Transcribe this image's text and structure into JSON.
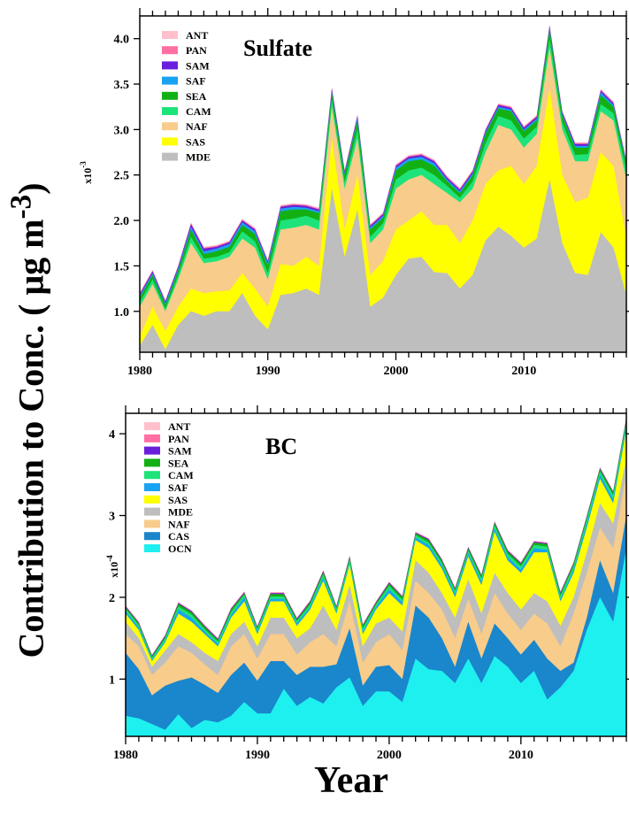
{
  "ylabel": "Contribution to Conc. ( μg m-3)",
  "xlabel": "Year",
  "chart_data": [
    {
      "type": "area",
      "stacked": true,
      "title": "Sulfate",
      "scale_label": "x10-3",
      "xlim": [
        1980,
        2018
      ],
      "ylim": [
        0.55,
        4.25
      ],
      "x_ticks": [
        1980,
        1990,
        2000,
        2010
      ],
      "y_ticks": [
        1.0,
        1.5,
        2.0,
        2.5,
        3.0,
        3.5,
        4.0
      ],
      "y_tick_labels": [
        "1.0",
        "1.5",
        "2.0",
        "2.5",
        "3.0",
        "3.5",
        "4.0"
      ],
      "legend": [
        "ANT",
        "PAN",
        "SAM",
        "SAF",
        "SEA",
        "CAM",
        "NAF",
        "SAS",
        "MDE"
      ],
      "legend_position": "top-left",
      "x": [
        1980,
        1981,
        1982,
        1983,
        1984,
        1985,
        1986,
        1987,
        1988,
        1989,
        1990,
        1991,
        1992,
        1993,
        1994,
        1995,
        1996,
        1997,
        1998,
        1999,
        2000,
        2001,
        2002,
        2003,
        2004,
        2005,
        2006,
        2007,
        2008,
        2009,
        2010,
        2011,
        2012,
        2013,
        2014,
        2015,
        2016,
        2017,
        2018
      ],
      "stack_order": [
        "MDE",
        "SAS",
        "NAF",
        "CAM",
        "SEA",
        "SAF",
        "SAM",
        "PAN",
        "ANT"
      ],
      "cumulative": true,
      "series": [
        {
          "name": "MDE",
          "color": "#bebebe",
          "values": [
            0.62,
            0.85,
            0.58,
            0.85,
            1.0,
            0.95,
            1.0,
            1.0,
            1.2,
            0.95,
            0.8,
            1.18,
            1.2,
            1.25,
            1.18,
            2.35,
            1.6,
            2.12,
            1.05,
            1.15,
            1.4,
            1.58,
            1.6,
            1.43,
            1.42,
            1.25,
            1.4,
            1.78,
            1.93,
            1.83,
            1.7,
            1.8,
            2.45,
            1.75,
            1.42,
            1.4,
            1.87,
            1.7,
            1.18
          ]
        },
        {
          "name": "SAS",
          "color": "#ffff00",
          "values": [
            0.72,
            1.05,
            0.78,
            1.05,
            1.25,
            1.2,
            1.22,
            1.23,
            1.42,
            1.25,
            1.05,
            1.52,
            1.5,
            1.6,
            1.5,
            2.9,
            1.9,
            2.5,
            1.4,
            1.55,
            1.9,
            2.0,
            2.1,
            1.95,
            1.95,
            1.75,
            2.0,
            2.4,
            2.55,
            2.6,
            2.4,
            2.6,
            3.45,
            2.5,
            2.2,
            2.25,
            2.75,
            2.6,
            1.8
          ]
        },
        {
          "name": "NAF",
          "color": "#f8cc8a",
          "values": [
            1.05,
            1.3,
            1.0,
            1.35,
            1.75,
            1.53,
            1.55,
            1.6,
            1.8,
            1.7,
            1.35,
            1.9,
            1.92,
            1.95,
            1.9,
            3.25,
            2.35,
            2.9,
            1.75,
            1.9,
            2.35,
            2.45,
            2.5,
            2.4,
            2.3,
            2.2,
            2.35,
            2.75,
            3.05,
            3.0,
            2.8,
            2.95,
            3.9,
            3.0,
            2.65,
            2.65,
            3.2,
            3.1,
            2.45
          ]
        },
        {
          "name": "CAM",
          "color": "#1ee37a",
          "values": [
            1.1,
            1.35,
            1.03,
            1.4,
            1.82,
            1.58,
            1.6,
            1.65,
            1.88,
            1.77,
            1.42,
            2.0,
            2.02,
            2.05,
            2.0,
            3.33,
            2.42,
            3.0,
            1.82,
            1.97,
            2.45,
            2.55,
            2.58,
            2.5,
            2.38,
            2.25,
            2.43,
            2.85,
            3.15,
            3.1,
            2.9,
            3.03,
            4.0,
            3.08,
            2.72,
            2.73,
            3.28,
            3.18,
            2.55
          ]
        },
        {
          "name": "SEA",
          "color": "#13b013",
          "values": [
            1.15,
            1.4,
            1.07,
            1.45,
            1.9,
            1.63,
            1.66,
            1.71,
            1.95,
            1.85,
            1.5,
            2.1,
            2.12,
            2.12,
            2.08,
            3.4,
            2.5,
            3.1,
            1.9,
            2.03,
            2.55,
            2.65,
            2.67,
            2.6,
            2.43,
            2.3,
            2.5,
            2.95,
            3.23,
            3.2,
            2.98,
            3.1,
            4.1,
            3.15,
            2.8,
            2.8,
            3.38,
            3.25,
            2.62
          ]
        },
        {
          "name": "SAF",
          "color": "#1aa3f0",
          "values": [
            1.17,
            1.42,
            1.09,
            1.47,
            1.93,
            1.66,
            1.69,
            1.74,
            1.98,
            1.88,
            1.53,
            2.13,
            2.15,
            2.14,
            2.1,
            3.42,
            2.52,
            3.13,
            1.92,
            2.05,
            2.58,
            2.68,
            2.7,
            2.63,
            2.45,
            2.32,
            2.52,
            2.97,
            3.25,
            3.22,
            3.0,
            3.12,
            4.12,
            3.17,
            2.82,
            2.82,
            3.41,
            3.27,
            2.64
          ]
        },
        {
          "name": "SAM",
          "color": "#6a1fdc",
          "values": [
            1.19,
            1.44,
            1.11,
            1.49,
            1.96,
            1.69,
            1.71,
            1.76,
            2.0,
            1.9,
            1.55,
            2.15,
            2.17,
            2.16,
            2.12,
            3.45,
            2.54,
            3.15,
            1.94,
            2.07,
            2.6,
            2.7,
            2.72,
            2.65,
            2.47,
            2.34,
            2.54,
            2.99,
            3.27,
            3.24,
            3.02,
            3.14,
            4.14,
            3.19,
            2.84,
            2.84,
            3.43,
            3.29,
            2.65
          ]
        },
        {
          "name": "PAN",
          "color": "#ff6fa4",
          "values": [
            1.2,
            1.45,
            1.12,
            1.5,
            1.97,
            1.7,
            1.72,
            1.77,
            2.01,
            1.91,
            1.56,
            2.16,
            2.18,
            2.17,
            2.13,
            3.46,
            2.55,
            3.16,
            1.95,
            2.08,
            2.61,
            2.71,
            2.73,
            2.66,
            2.48,
            2.35,
            2.55,
            3.0,
            3.28,
            3.25,
            3.03,
            3.15,
            4.15,
            3.2,
            2.85,
            2.85,
            3.44,
            3.3,
            2.66
          ]
        },
        {
          "name": "ANT",
          "color": "#ffc0cb",
          "values": [
            1.21,
            1.46,
            1.12,
            1.51,
            1.98,
            1.71,
            1.73,
            1.78,
            2.02,
            1.92,
            1.57,
            2.17,
            2.19,
            2.18,
            2.14,
            3.47,
            2.56,
            3.17,
            1.96,
            2.09,
            2.62,
            2.72,
            2.74,
            2.67,
            2.49,
            2.36,
            2.56,
            3.01,
            3.29,
            3.26,
            3.04,
            3.16,
            4.16,
            3.21,
            2.86,
            2.86,
            3.45,
            3.31,
            2.67
          ]
        }
      ]
    },
    {
      "type": "area",
      "stacked": true,
      "title": "BC",
      "scale_label": "x10-4",
      "xlim": [
        1980,
        2018
      ],
      "ylim": [
        0.3,
        4.25
      ],
      "x_ticks": [
        1980,
        1990,
        2000,
        2010
      ],
      "y_ticks": [
        1,
        2,
        3,
        4
      ],
      "y_tick_labels": [
        "1",
        "2",
        "3",
        "4"
      ],
      "legend": [
        "ANT",
        "PAN",
        "SAM",
        "SEA",
        "CAM",
        "SAF",
        "SAS",
        "MDE",
        "NAF",
        "CAS",
        "OCN"
      ],
      "legend_position": "top-left",
      "x": [
        1980,
        1981,
        1982,
        1983,
        1984,
        1985,
        1986,
        1987,
        1988,
        1989,
        1990,
        1991,
        1992,
        1993,
        1994,
        1995,
        1996,
        1997,
        1998,
        1999,
        2000,
        2001,
        2002,
        2003,
        2004,
        2005,
        2006,
        2007,
        2008,
        2009,
        2010,
        2011,
        2012,
        2013,
        2014,
        2015,
        2016,
        2017,
        2018
      ],
      "stack_order": [
        "OCN",
        "CAS",
        "NAF",
        "MDE",
        "SAS",
        "SAF",
        "CAM",
        "SEA",
        "SAM",
        "PAN",
        "ANT"
      ],
      "cumulative": true,
      "series": [
        {
          "name": "OCN",
          "color": "#1ef0f0",
          "values": [
            0.55,
            0.52,
            0.45,
            0.38,
            0.57,
            0.4,
            0.5,
            0.47,
            0.55,
            0.72,
            0.58,
            0.58,
            0.88,
            0.67,
            0.78,
            0.7,
            0.9,
            1.02,
            0.67,
            0.85,
            0.85,
            0.72,
            1.25,
            1.12,
            1.1,
            0.95,
            1.25,
            0.95,
            1.28,
            1.15,
            0.95,
            1.1,
            0.75,
            0.9,
            1.1,
            1.6,
            2.0,
            1.7,
            2.6
          ]
        },
        {
          "name": "CAS",
          "color": "#1a86cc",
          "values": [
            1.32,
            1.12,
            0.8,
            0.92,
            0.98,
            1.02,
            0.93,
            0.83,
            1.05,
            1.2,
            0.98,
            1.22,
            1.22,
            1.05,
            1.15,
            1.15,
            1.18,
            1.62,
            0.92,
            1.15,
            1.17,
            1.0,
            1.9,
            1.75,
            1.5,
            1.15,
            1.7,
            1.25,
            1.68,
            1.5,
            1.3,
            1.48,
            1.25,
            1.1,
            1.2,
            1.75,
            2.45,
            2.05,
            3.0
          ]
        },
        {
          "name": "NAF",
          "color": "#f8cc8a",
          "values": [
            1.55,
            1.4,
            1.05,
            1.2,
            1.4,
            1.32,
            1.18,
            1.05,
            1.4,
            1.55,
            1.25,
            1.55,
            1.55,
            1.3,
            1.45,
            1.55,
            1.4,
            1.95,
            1.2,
            1.45,
            1.55,
            1.35,
            2.2,
            2.05,
            1.85,
            1.5,
            1.98,
            1.55,
            2.05,
            1.8,
            1.6,
            1.8,
            1.68,
            1.4,
            1.8,
            2.3,
            2.85,
            2.6,
            3.5
          ]
        },
        {
          "name": "MDE",
          "color": "#bebebe",
          "values": [
            1.7,
            1.5,
            1.15,
            1.35,
            1.55,
            1.45,
            1.32,
            1.22,
            1.55,
            1.7,
            1.4,
            1.75,
            1.75,
            1.5,
            1.62,
            1.9,
            1.6,
            2.15,
            1.4,
            1.68,
            1.75,
            1.58,
            2.45,
            2.3,
            2.05,
            1.75,
            2.22,
            1.8,
            2.3,
            2.05,
            1.85,
            2.05,
            1.95,
            1.65,
            2.0,
            2.55,
            3.15,
            2.9,
            3.7
          ]
        },
        {
          "name": "SAS",
          "color": "#ffff00",
          "values": [
            1.8,
            1.6,
            1.22,
            1.45,
            1.8,
            1.7,
            1.55,
            1.4,
            1.75,
            1.95,
            1.55,
            1.95,
            1.95,
            1.65,
            1.85,
            2.2,
            1.8,
            2.4,
            1.55,
            1.85,
            2.05,
            1.9,
            2.7,
            2.6,
            2.35,
            2.0,
            2.5,
            2.15,
            2.8,
            2.45,
            2.3,
            2.55,
            2.55,
            1.95,
            2.3,
            2.85,
            3.45,
            3.15,
            4.05
          ]
        },
        {
          "name": "SAF",
          "color": "#1aa3f0",
          "values": [
            1.83,
            1.63,
            1.24,
            1.47,
            1.85,
            1.75,
            1.58,
            1.43,
            1.78,
            2.0,
            1.58,
            1.98,
            1.98,
            1.68,
            1.88,
            2.24,
            1.83,
            2.43,
            1.58,
            1.88,
            2.1,
            1.94,
            2.73,
            2.64,
            2.39,
            2.04,
            2.54,
            2.19,
            2.84,
            2.49,
            2.34,
            2.6,
            2.58,
            1.98,
            2.34,
            2.9,
            3.5,
            3.2,
            4.1
          ]
        },
        {
          "name": "CAM",
          "color": "#1ee37a",
          "values": [
            1.86,
            1.66,
            1.26,
            1.5,
            1.89,
            1.79,
            1.61,
            1.46,
            1.82,
            2.03,
            1.61,
            2.01,
            2.01,
            1.71,
            1.91,
            2.28,
            1.86,
            2.46,
            1.62,
            1.91,
            2.14,
            1.97,
            2.76,
            2.67,
            2.42,
            2.08,
            2.57,
            2.23,
            2.88,
            2.53,
            2.38,
            2.64,
            2.62,
            2.02,
            2.38,
            2.95,
            3.54,
            3.25,
            4.15
          ]
        },
        {
          "name": "SEA",
          "color": "#13b013",
          "values": [
            1.88,
            1.68,
            1.28,
            1.52,
            1.92,
            1.82,
            1.64,
            1.48,
            1.85,
            2.05,
            1.63,
            2.04,
            2.04,
            1.73,
            1.94,
            2.31,
            1.88,
            2.49,
            1.65,
            1.93,
            2.17,
            2.0,
            2.78,
            2.7,
            2.45,
            2.1,
            2.6,
            2.26,
            2.91,
            2.56,
            2.41,
            2.67,
            2.65,
            2.05,
            2.41,
            2.98,
            3.57,
            3.28,
            4.18
          ]
        },
        {
          "name": "SAM",
          "color": "#6a1fdc",
          "values": [
            1.89,
            1.69,
            1.29,
            1.53,
            1.93,
            1.83,
            1.65,
            1.49,
            1.86,
            2.06,
            1.64,
            2.05,
            2.05,
            1.74,
            1.95,
            2.32,
            1.89,
            2.5,
            1.66,
            1.94,
            2.18,
            2.01,
            2.79,
            2.71,
            2.46,
            2.11,
            2.61,
            2.27,
            2.92,
            2.57,
            2.42,
            2.68,
            2.66,
            2.06,
            2.42,
            2.99,
            3.58,
            3.29,
            4.19
          ]
        },
        {
          "name": "PAN",
          "color": "#ff6fa4",
          "values": [
            1.9,
            1.7,
            1.29,
            1.54,
            1.94,
            1.84,
            1.66,
            1.5,
            1.87,
            2.07,
            1.65,
            2.06,
            2.06,
            1.75,
            1.96,
            2.33,
            1.9,
            2.51,
            1.67,
            1.95,
            2.19,
            2.02,
            2.8,
            2.72,
            2.47,
            2.12,
            2.62,
            2.28,
            2.93,
            2.58,
            2.43,
            2.69,
            2.67,
            2.07,
            2.43,
            3.0,
            3.59,
            3.3,
            4.2
          ]
        },
        {
          "name": "ANT",
          "color": "#ffc0cb",
          "values": [
            1.9,
            1.7,
            1.3,
            1.54,
            1.94,
            1.84,
            1.66,
            1.5,
            1.87,
            2.07,
            1.65,
            2.06,
            2.06,
            1.75,
            1.96,
            2.33,
            1.9,
            2.51,
            1.67,
            1.95,
            2.19,
            2.02,
            2.8,
            2.72,
            2.47,
            2.12,
            2.62,
            2.28,
            2.93,
            2.58,
            2.43,
            2.69,
            2.67,
            2.07,
            2.43,
            3.0,
            3.59,
            3.3,
            4.2
          ]
        }
      ]
    }
  ]
}
